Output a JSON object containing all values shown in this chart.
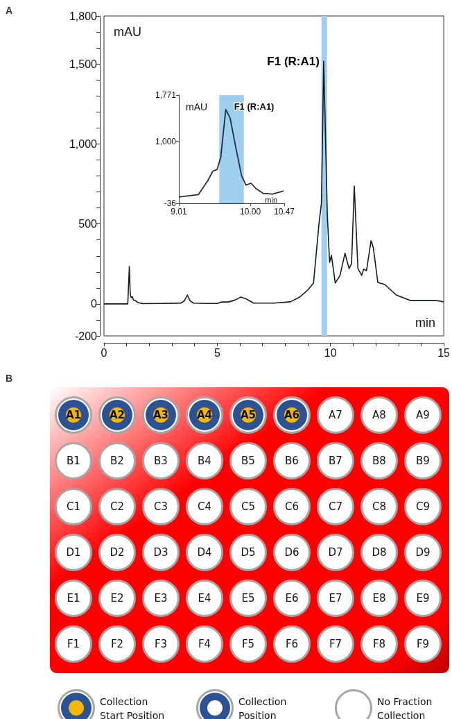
{
  "chart_data": [
    {
      "type": "line",
      "title": "A",
      "xlabel": "min",
      "ylabel": "mAU",
      "color": "#111a26",
      "marker": "none",
      "x": [
        0,
        1.05,
        1.12,
        1.16,
        1.2,
        1.25,
        1.3,
        1.4,
        1.5,
        1.7,
        2.5,
        3.4,
        3.55,
        3.68,
        3.8,
        3.95,
        4.5,
        5.0,
        5.2,
        5.5,
        5.8,
        6.04,
        6.3,
        6.6,
        7.5,
        8.23,
        8.64,
        9.0,
        9.25,
        9.5,
        9.6,
        9.7,
        9.86,
        9.96,
        10.04,
        10.21,
        10.42,
        10.64,
        10.82,
        10.93,
        11.05,
        11.21,
        11.38,
        11.46,
        11.59,
        11.79,
        11.89,
        12.09,
        12.4,
        12.9,
        13.51,
        14.63,
        14.99
      ],
      "values": [
        0,
        0,
        234,
        60,
        40,
        45,
        25,
        20,
        8,
        2,
        3,
        5,
        20,
        56,
        20,
        5,
        3,
        3,
        12,
        12,
        25,
        43,
        30,
        5,
        5,
        13,
        43,
        87,
        130,
        512,
        629,
        1518,
        555,
        260,
        304,
        130,
        178,
        317,
        221,
        252,
        737,
        221,
        178,
        217,
        208,
        395,
        351,
        134,
        121,
        56,
        22,
        22,
        13
      ],
      "xlim": [
        0,
        15
      ],
      "ylim": [
        -200,
        1800
      ],
      "xticks": [
        0,
        {
          "value": 1,
          "label": null
        },
        {
          "value": 2,
          "label": null
        },
        {
          "value": 3,
          "label": null
        },
        {
          "value": 4,
          "label": null
        },
        5,
        {
          "value": 6,
          "label": null
        },
        {
          "value": 7,
          "label": null
        },
        {
          "value": 8,
          "label": null
        },
        {
          "value": 9,
          "label": null
        },
        10,
        {
          "value": 11,
          "label": null
        },
        {
          "value": 12,
          "label": null
        },
        {
          "value": 13,
          "label": null
        },
        {
          "value": 14,
          "label": null
        },
        15
      ],
      "yticks": [
        -200,
        {
          "value": -100,
          "label": null
        },
        0,
        {
          "value": 100,
          "label": null
        },
        {
          "value": 200,
          "label": null
        },
        {
          "value": 300,
          "label": null
        },
        {
          "value": 400,
          "label": null
        },
        500,
        {
          "value": 600,
          "label": null
        },
        {
          "value": 700,
          "label": null
        },
        {
          "value": 800,
          "label": null
        },
        {
          "value": 900,
          "label": null
        },
        {
          "value": 1000,
          "label": "1,000"
        },
        {
          "value": 1100,
          "label": null
        },
        {
          "value": 1200,
          "label": null
        },
        {
          "value": 1300,
          "label": null
        },
        {
          "value": 1400,
          "label": null
        },
        {
          "value": 1500,
          "label": "1,500"
        },
        {
          "value": 1600,
          "label": null
        },
        {
          "value": 1700,
          "label": null
        },
        {
          "value": 1800,
          "label": "1,800"
        }
      ],
      "bands": [
        {
          "axis": "x",
          "from": 9.6,
          "to": 9.85,
          "color": "#9ecfee"
        }
      ],
      "annotations": [
        {
          "text": "F1 (R:A1)",
          "x": 9.7,
          "y": 1518
        }
      ]
    },
    {
      "type": "line",
      "xlabel": "min",
      "ylabel": "mAU",
      "color": "#1f2d45",
      "marker": "none",
      "x": [
        9.01,
        9.28,
        9.41,
        9.48,
        9.54,
        9.59,
        9.66,
        9.72,
        9.8,
        9.88,
        9.94,
        10.01,
        10.08,
        10.18,
        10.31,
        10.46
      ],
      "values": [
        70,
        110,
        340,
        500,
        530,
        730,
        1530,
        1390,
        890,
        420,
        270,
        300,
        210,
        130,
        120,
        170
      ],
      "xlim": [
        9.01,
        10.47
      ],
      "ylim": [
        -36,
        1771
      ],
      "xticks": [
        {
          "value": 9.01,
          "label": "9.01"
        },
        {
          "value": 10,
          "label": "10.00"
        },
        {
          "value": 10.47,
          "label": "10.47"
        }
      ],
      "yticks": [
        -36,
        {
          "value": 1000,
          "label": "1,000"
        },
        {
          "value": 1771,
          "label": "1,771"
        }
      ],
      "bands": [
        {
          "axis": "x",
          "from": 9.57,
          "to": 9.91,
          "color": "#9ecfee"
        }
      ],
      "annotations": [
        {
          "text": "F1 (R:A1)",
          "x": 9.66,
          "y": 1530
        }
      ]
    },
    {
      "type": "other",
      "title": "B",
      "categories": [
        "A1",
        "A2",
        "A3",
        "A4",
        "A5",
        "A6",
        "A7",
        "A8",
        "A9",
        "B1",
        "B2",
        "B3",
        "B4",
        "B5",
        "B6",
        "B7",
        "B8",
        "B9",
        "C1",
        "C2",
        "C3",
        "C4",
        "C5",
        "C6",
        "C7",
        "C8",
        "C9",
        "D1",
        "D2",
        "D3",
        "D4",
        "D5",
        "D6",
        "D7",
        "D8",
        "D9",
        "E1",
        "E2",
        "E3",
        "E4",
        "E5",
        "E6",
        "E7",
        "E8",
        "E9",
        "F1",
        "F2",
        "F3",
        "F4",
        "F5",
        "F6",
        "F7",
        "F8",
        "F9"
      ],
      "colors": [
        [
          "#2d5294",
          "#f5b800"
        ],
        [
          "#2d5294",
          "#f5b800"
        ],
        [
          "#2d5294",
          "#f5b800"
        ],
        [
          "#2d5294",
          "#f5b800"
        ],
        [
          "#2d5294",
          "#f5b800"
        ],
        [
          "#2d5294",
          "#f5b800"
        ],
        null,
        null,
        null,
        null,
        null,
        null,
        null,
        null,
        null,
        null,
        null,
        null,
        null,
        null,
        null,
        null,
        null,
        null,
        null,
        null,
        null,
        null,
        null,
        null,
        null,
        null,
        null,
        null,
        null,
        null,
        null,
        null,
        null,
        null,
        null,
        null,
        null,
        null,
        null,
        null,
        null,
        null,
        null,
        null,
        null,
        null,
        null,
        null
      ],
      "annotations": [
        "Collection Start Position",
        "Collection Position",
        "No Fraction Collection"
      ]
    }
  ]
}
